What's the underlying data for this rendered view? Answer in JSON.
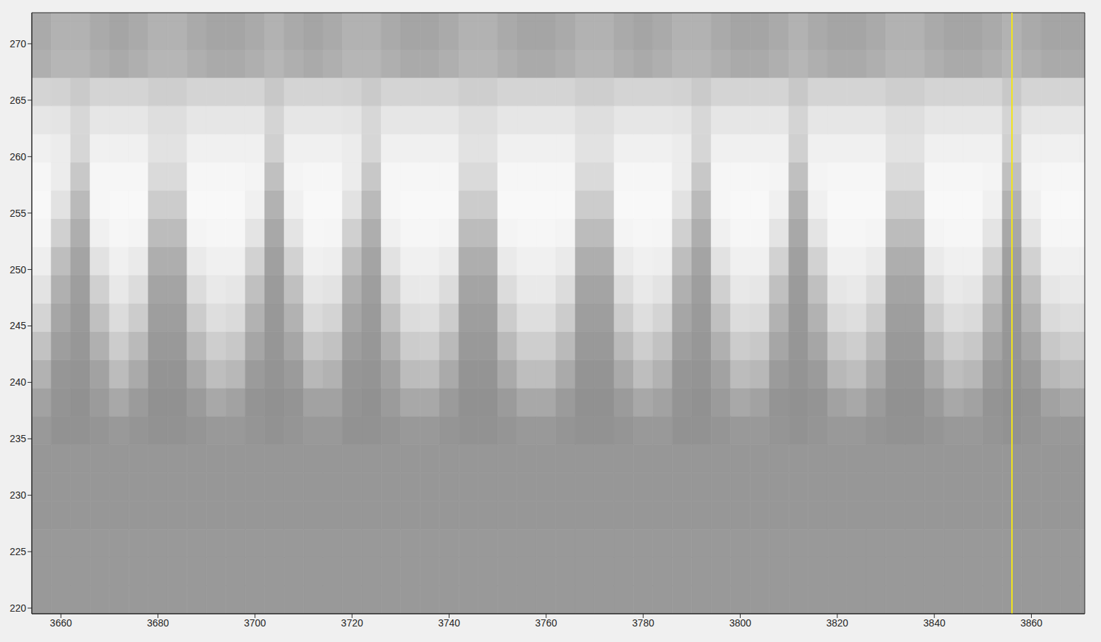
{
  "chart_data": {
    "type": "heatmap",
    "xlim": [
      3654,
      3871
    ],
    "xticks": [
      3660,
      3680,
      3700,
      3720,
      3740,
      3760,
      3780,
      3800,
      3820,
      3840,
      3860
    ],
    "ylim": [
      219.5,
      272.75
    ],
    "yticks": [
      220,
      225,
      230,
      235,
      240,
      245,
      250,
      255,
      260,
      265,
      270
    ],
    "grid": false,
    "clim": [
      0,
      255
    ],
    "vline": {
      "x": 3856,
      "color": "#f2e41c"
    },
    "x_edges": [
      3654,
      3658,
      3662,
      3666,
      3670,
      3674,
      3678,
      3682,
      3686,
      3690,
      3694,
      3698,
      3702,
      3706,
      3710,
      3714,
      3718,
      3722,
      3726,
      3730,
      3734,
      3738,
      3742,
      3746,
      3750,
      3754,
      3758,
      3762,
      3766,
      3770,
      3774,
      3778,
      3782,
      3786,
      3790,
      3794,
      3798,
      3802,
      3806,
      3810,
      3814,
      3818,
      3822,
      3826,
      3830,
      3834,
      3838,
      3842,
      3846,
      3850,
      3854,
      3858,
      3862,
      3866,
      3870,
      3874
    ],
    "y_edges": [
      219.5,
      222,
      224.5,
      227,
      229.5,
      232,
      234.5,
      237,
      239.5,
      242,
      244.5,
      247,
      249.5,
      252,
      254.5,
      257,
      259.5,
      262,
      264.5,
      267,
      269.5,
      272,
      274.5
    ],
    "cells": [
      [
        153,
        153,
        153,
        153,
        153,
        153,
        153,
        153,
        153,
        153,
        153,
        153,
        153,
        153,
        153,
        153,
        153,
        153,
        153,
        153,
        153,
        153,
        153,
        153,
        153,
        153,
        153,
        153,
        153,
        153,
        153,
        153,
        153,
        153,
        153,
        153,
        153,
        153,
        153,
        153,
        153,
        153,
        153,
        153,
        153,
        153,
        153,
        153,
        153,
        153,
        153,
        153,
        153,
        153,
        153
      ],
      [
        153,
        153,
        153,
        153,
        153,
        153,
        153,
        153,
        153,
        153,
        153,
        153,
        153,
        153,
        153,
        153,
        153,
        153,
        153,
        153,
        153,
        153,
        153,
        153,
        153,
        153,
        153,
        153,
        153,
        153,
        153,
        153,
        153,
        153,
        153,
        153,
        153,
        153,
        153,
        153,
        153,
        153,
        153,
        153,
        153,
        153,
        153,
        153,
        153,
        153,
        153,
        153,
        153,
        153,
        153
      ],
      [
        153,
        153,
        153,
        153,
        153,
        153,
        153,
        153,
        153,
        153,
        153,
        153,
        153,
        153,
        153,
        153,
        153,
        153,
        153,
        153,
        153,
        153,
        153,
        153,
        153,
        153,
        153,
        153,
        153,
        153,
        153,
        153,
        153,
        153,
        153,
        153,
        153,
        153,
        153,
        153,
        153,
        153,
        153,
        153,
        153,
        153,
        153,
        153,
        153,
        153,
        153,
        153,
        153,
        153,
        153
      ],
      [
        151,
        151,
        151,
        151,
        151,
        151,
        151,
        151,
        151,
        151,
        151,
        151,
        151,
        151,
        151,
        151,
        151,
        151,
        151,
        151,
        151,
        151,
        151,
        151,
        151,
        151,
        151,
        151,
        151,
        151,
        151,
        151,
        151,
        151,
        151,
        151,
        151,
        151,
        151,
        151,
        151,
        151,
        151,
        151,
        151,
        151,
        151,
        151,
        151,
        151,
        151,
        151,
        151,
        151,
        151
      ],
      [
        151,
        151,
        151,
        151,
        151,
        151,
        151,
        151,
        151,
        151,
        151,
        151,
        151,
        151,
        151,
        151,
        151,
        151,
        151,
        151,
        151,
        151,
        151,
        151,
        151,
        151,
        151,
        151,
        151,
        151,
        151,
        151,
        151,
        151,
        151,
        151,
        151,
        151,
        151,
        151,
        151,
        151,
        151,
        151,
        151,
        151,
        151,
        151,
        151,
        151,
        151,
        151,
        151,
        151,
        151
      ],
      [
        151,
        151,
        151,
        151,
        151,
        151,
        151,
        151,
        151,
        151,
        151,
        151,
        151,
        151,
        151,
        151,
        151,
        151,
        151,
        151,
        151,
        151,
        151,
        151,
        151,
        151,
        151,
        151,
        151,
        151,
        151,
        151,
        151,
        151,
        151,
        151,
        151,
        151,
        151,
        151,
        151,
        151,
        151,
        151,
        151,
        151,
        151,
        151,
        151,
        151,
        151,
        151,
        151,
        151,
        151
      ],
      [
        153,
        146,
        146,
        149,
        153,
        149,
        146,
        146,
        149,
        153,
        153,
        149,
        146,
        149,
        153,
        153,
        146,
        146,
        149,
        153,
        153,
        149,
        146,
        146,
        149,
        153,
        153,
        149,
        146,
        146,
        149,
        153,
        153,
        146,
        146,
        149,
        153,
        153,
        149,
        146,
        149,
        153,
        153,
        149,
        146,
        146,
        149,
        153,
        153,
        149,
        146,
        149,
        153,
        153,
        153
      ],
      [
        162,
        148,
        145,
        155,
        168,
        155,
        145,
        145,
        155,
        168,
        162,
        148,
        145,
        148,
        162,
        162,
        148,
        145,
        155,
        168,
        168,
        155,
        145,
        145,
        155,
        168,
        168,
        155,
        145,
        145,
        155,
        168,
        162,
        148,
        145,
        155,
        168,
        162,
        148,
        145,
        148,
        162,
        168,
        155,
        145,
        145,
        155,
        168,
        162,
        148,
        145,
        148,
        162,
        168,
        168
      ],
      [
        178,
        150,
        148,
        162,
        188,
        170,
        148,
        148,
        170,
        190,
        184,
        155,
        148,
        155,
        184,
        178,
        150,
        148,
        162,
        188,
        190,
        170,
        148,
        148,
        170,
        190,
        190,
        170,
        148,
        148,
        170,
        190,
        178,
        150,
        148,
        162,
        188,
        184,
        155,
        148,
        155,
        184,
        190,
        170,
        148,
        148,
        170,
        190,
        184,
        155,
        148,
        155,
        184,
        190,
        190
      ],
      [
        194,
        158,
        151,
        176,
        204,
        186,
        153,
        153,
        186,
        206,
        200,
        166,
        150,
        166,
        200,
        194,
        158,
        151,
        176,
        204,
        206,
        186,
        153,
        153,
        186,
        206,
        206,
        186,
        153,
        153,
        186,
        206,
        194,
        158,
        151,
        176,
        204,
        200,
        166,
        150,
        166,
        200,
        206,
        186,
        153,
        153,
        186,
        206,
        200,
        166,
        150,
        166,
        200,
        206,
        206
      ],
      [
        212,
        166,
        154,
        192,
        220,
        204,
        158,
        158,
        204,
        222,
        218,
        178,
        152,
        178,
        218,
        212,
        166,
        154,
        192,
        220,
        222,
        204,
        158,
        158,
        204,
        222,
        222,
        204,
        158,
        158,
        204,
        222,
        212,
        166,
        154,
        192,
        220,
        218,
        178,
        152,
        178,
        218,
        222,
        204,
        158,
        158,
        204,
        222,
        218,
        178,
        152,
        178,
        218,
        222,
        222
      ],
      [
        227,
        176,
        158,
        208,
        232,
        220,
        164,
        164,
        220,
        233,
        230,
        192,
        155,
        192,
        230,
        227,
        176,
        158,
        208,
        232,
        233,
        220,
        164,
        164,
        220,
        233,
        233,
        220,
        164,
        164,
        220,
        233,
        227,
        176,
        158,
        208,
        232,
        230,
        192,
        155,
        192,
        230,
        233,
        220,
        164,
        164,
        220,
        233,
        230,
        192,
        155,
        192,
        230,
        233,
        233
      ],
      [
        238,
        190,
        164,
        226,
        240,
        234,
        174,
        174,
        234,
        240,
        240,
        210,
        160,
        210,
        240,
        238,
        190,
        164,
        226,
        240,
        240,
        234,
        174,
        174,
        234,
        240,
        240,
        234,
        174,
        174,
        234,
        240,
        238,
        190,
        164,
        226,
        240,
        240,
        210,
        160,
        210,
        240,
        240,
        234,
        174,
        174,
        234,
        240,
        240,
        210,
        160,
        210,
        240,
        240,
        240
      ],
      [
        245,
        208,
        174,
        240,
        246,
        244,
        188,
        188,
        244,
        246,
        246,
        228,
        168,
        228,
        246,
        245,
        208,
        174,
        240,
        246,
        246,
        244,
        188,
        188,
        244,
        246,
        246,
        244,
        188,
        188,
        244,
        246,
        245,
        208,
        174,
        240,
        246,
        246,
        228,
        168,
        228,
        246,
        246,
        244,
        188,
        188,
        244,
        246,
        246,
        228,
        168,
        228,
        246,
        246,
        246
      ],
      [
        248,
        226,
        186,
        246,
        248,
        248,
        204,
        204,
        248,
        248,
        248,
        240,
        178,
        240,
        248,
        248,
        226,
        186,
        246,
        248,
        248,
        248,
        204,
        204,
        248,
        248,
        248,
        248,
        204,
        204,
        248,
        248,
        248,
        226,
        186,
        246,
        248,
        248,
        240,
        178,
        240,
        248,
        248,
        248,
        204,
        204,
        248,
        248,
        248,
        240,
        178,
        240,
        248,
        248,
        248
      ],
      [
        246,
        236,
        200,
        246,
        246,
        246,
        218,
        218,
        246,
        246,
        246,
        244,
        192,
        244,
        246,
        246,
        236,
        200,
        246,
        246,
        246,
        246,
        218,
        218,
        246,
        246,
        246,
        246,
        218,
        218,
        246,
        246,
        246,
        236,
        200,
        246,
        246,
        246,
        244,
        192,
        244,
        246,
        246,
        246,
        218,
        218,
        246,
        246,
        246,
        244,
        192,
        244,
        246,
        246,
        246
      ],
      [
        240,
        236,
        214,
        240,
        240,
        240,
        226,
        226,
        240,
        240,
        240,
        240,
        208,
        240,
        240,
        240,
        236,
        214,
        240,
        240,
        240,
        240,
        226,
        226,
        240,
        240,
        240,
        240,
        226,
        226,
        240,
        240,
        240,
        236,
        214,
        240,
        240,
        240,
        240,
        208,
        240,
        240,
        240,
        240,
        226,
        226,
        240,
        240,
        240,
        240,
        208,
        240,
        240,
        240,
        240
      ],
      [
        230,
        228,
        215,
        230,
        230,
        230,
        222,
        222,
        230,
        230,
        230,
        230,
        212,
        230,
        230,
        230,
        228,
        215,
        230,
        230,
        230,
        230,
        222,
        222,
        230,
        230,
        230,
        230,
        222,
        222,
        230,
        230,
        230,
        228,
        215,
        230,
        230,
        230,
        230,
        212,
        230,
        230,
        230,
        230,
        222,
        222,
        230,
        230,
        230,
        230,
        212,
        230,
        230,
        230,
        230
      ],
      [
        212,
        210,
        202,
        212,
        212,
        212,
        206,
        206,
        212,
        212,
        212,
        212,
        200,
        212,
        212,
        212,
        210,
        202,
        212,
        212,
        212,
        212,
        206,
        206,
        212,
        212,
        212,
        212,
        206,
        206,
        212,
        212,
        212,
        210,
        202,
        212,
        212,
        212,
        212,
        200,
        212,
        212,
        212,
        212,
        206,
        206,
        212,
        212,
        212,
        212,
        200,
        212,
        212,
        212,
        212
      ],
      [
        175,
        182,
        182,
        175,
        170,
        175,
        182,
        182,
        175,
        170,
        170,
        175,
        182,
        175,
        170,
        175,
        182,
        182,
        175,
        170,
        170,
        175,
        182,
        182,
        175,
        170,
        170,
        175,
        182,
        182,
        175,
        170,
        175,
        182,
        182,
        175,
        170,
        170,
        175,
        182,
        175,
        170,
        170,
        175,
        182,
        182,
        175,
        170,
        170,
        175,
        182,
        175,
        170,
        170,
        170
      ],
      [
        170,
        178,
        178,
        170,
        165,
        170,
        178,
        178,
        170,
        165,
        165,
        170,
        178,
        170,
        165,
        170,
        178,
        178,
        170,
        165,
        165,
        170,
        178,
        178,
        170,
        165,
        165,
        170,
        178,
        178,
        170,
        165,
        170,
        178,
        178,
        170,
        165,
        165,
        170,
        178,
        170,
        165,
        165,
        170,
        178,
        178,
        170,
        165,
        165,
        170,
        178,
        170,
        165,
        165,
        165
      ],
      [
        170,
        178,
        178,
        170,
        165,
        170,
        178,
        178,
        170,
        165,
        165,
        170,
        178,
        170,
        165,
        170,
        178,
        178,
        170,
        165,
        165,
        170,
        178,
        178,
        170,
        165,
        165,
        170,
        178,
        178,
        170,
        165,
        170,
        178,
        178,
        170,
        165,
        165,
        170,
        178,
        170,
        165,
        165,
        170,
        178,
        178,
        170,
        165,
        165,
        170,
        178,
        170,
        165,
        165,
        165
      ]
    ]
  }
}
